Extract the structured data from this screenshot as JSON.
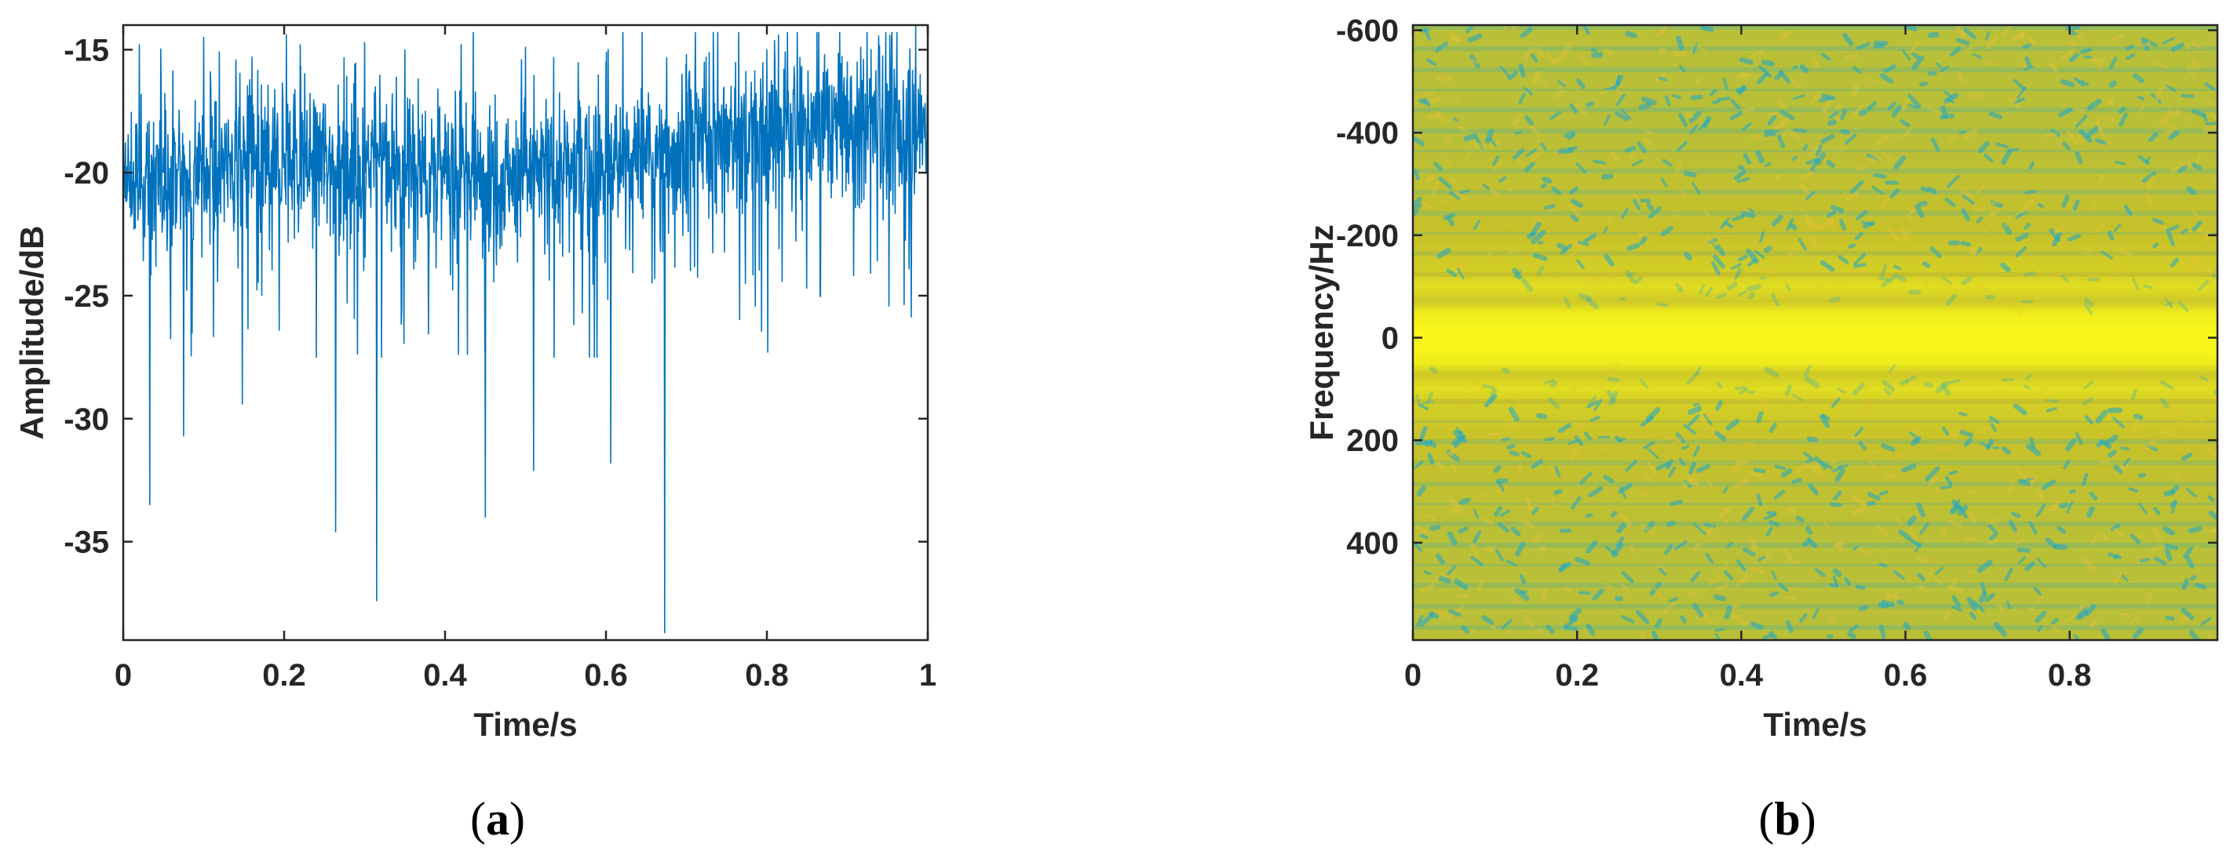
{
  "chart_data": [
    {
      "type": "line",
      "panel_label": "a",
      "title": "",
      "xlabel": "Time/s",
      "ylabel": "Amplitude/dB",
      "xlim": [
        0,
        1
      ],
      "ylim": [
        -39,
        -14
      ],
      "xticks": [
        0,
        0.2,
        0.4,
        0.6,
        0.8,
        1
      ],
      "xtick_labels": [
        "0",
        "0.2",
        "0.4",
        "0.6",
        "0.8",
        "1"
      ],
      "yticks": [
        -35,
        -30,
        -25,
        -20,
        -15
      ],
      "ytick_labels": [
        "-35",
        "-30",
        "-25",
        "-20",
        "-15"
      ],
      "grid": false,
      "line_color": "#0072BD",
      "series": [
        {
          "x": [
            0,
            0.02,
            0.033,
            0.05,
            0.075,
            0.1,
            0.12,
            0.148,
            0.16,
            0.2,
            0.22,
            0.25,
            0.264,
            0.3,
            0.315,
            0.34,
            0.35,
            0.4,
            0.42,
            0.44,
            0.45,
            0.47,
            0.5,
            0.51,
            0.55,
            0.6,
            0.606,
            0.65,
            0.673,
            0.7,
            0.75,
            0.8,
            0.85,
            0.9,
            0.95,
            0.985,
            1
          ],
          "values": [
            -19.5,
            -14.8,
            -33.5,
            -19.0,
            -30.7,
            -14.5,
            -20.5,
            -29.4,
            -15.3,
            -20.0,
            -14.8,
            -20.5,
            -34.6,
            -14.7,
            -37.4,
            -20.0,
            -15.0,
            -19.5,
            -14.8,
            -20.0,
            -34.0,
            -20.5,
            -14.9,
            -32.1,
            -20.0,
            -15.5,
            -31.8,
            -19.0,
            -38.7,
            -15.2,
            -19.5,
            -15.0,
            -19.0,
            -15.5,
            -18.5,
            -14.0,
            -18.0
          ]
        }
      ]
    },
    {
      "type": "heatmap",
      "panel_label": "b",
      "title": "",
      "xlabel": "Time/s",
      "ylabel": "Frequency/Hz",
      "xlim": [
        0,
        0.98
      ],
      "ylim": [
        -610,
        590
      ],
      "y_reversed": true,
      "xticks": [
        0,
        0.2,
        0.4,
        0.6,
        0.8
      ],
      "xtick_labels": [
        "0",
        "0.2",
        "0.4",
        "0.6",
        "0.8"
      ],
      "yticks": [
        -600,
        -400,
        -200,
        0,
        200,
        400
      ],
      "ytick_labels": [
        "-600",
        "-400",
        "-200",
        "0",
        "200",
        "400"
      ],
      "colormap": "parula",
      "colors": {
        "low": "#1FA8C8",
        "mid": "#C7C12A",
        "high": "#F7F51A"
      },
      "profile": {
        "freq": [
          -610,
          -400,
          -200,
          -120,
          -100,
          -70,
          -50,
          -20,
          0,
          20,
          50,
          70,
          100,
          120,
          200,
          400,
          590
        ],
        "level": [
          0.55,
          0.55,
          0.6,
          0.72,
          0.82,
          0.66,
          0.93,
          1.0,
          1.0,
          1.0,
          0.93,
          0.66,
          0.82,
          0.72,
          0.6,
          0.55,
          0.55
        ]
      }
    }
  ],
  "captions": [
    {
      "open": "(",
      "letter": "a",
      "close": ")"
    },
    {
      "open": "(",
      "letter": "b",
      "close": ")"
    }
  ]
}
